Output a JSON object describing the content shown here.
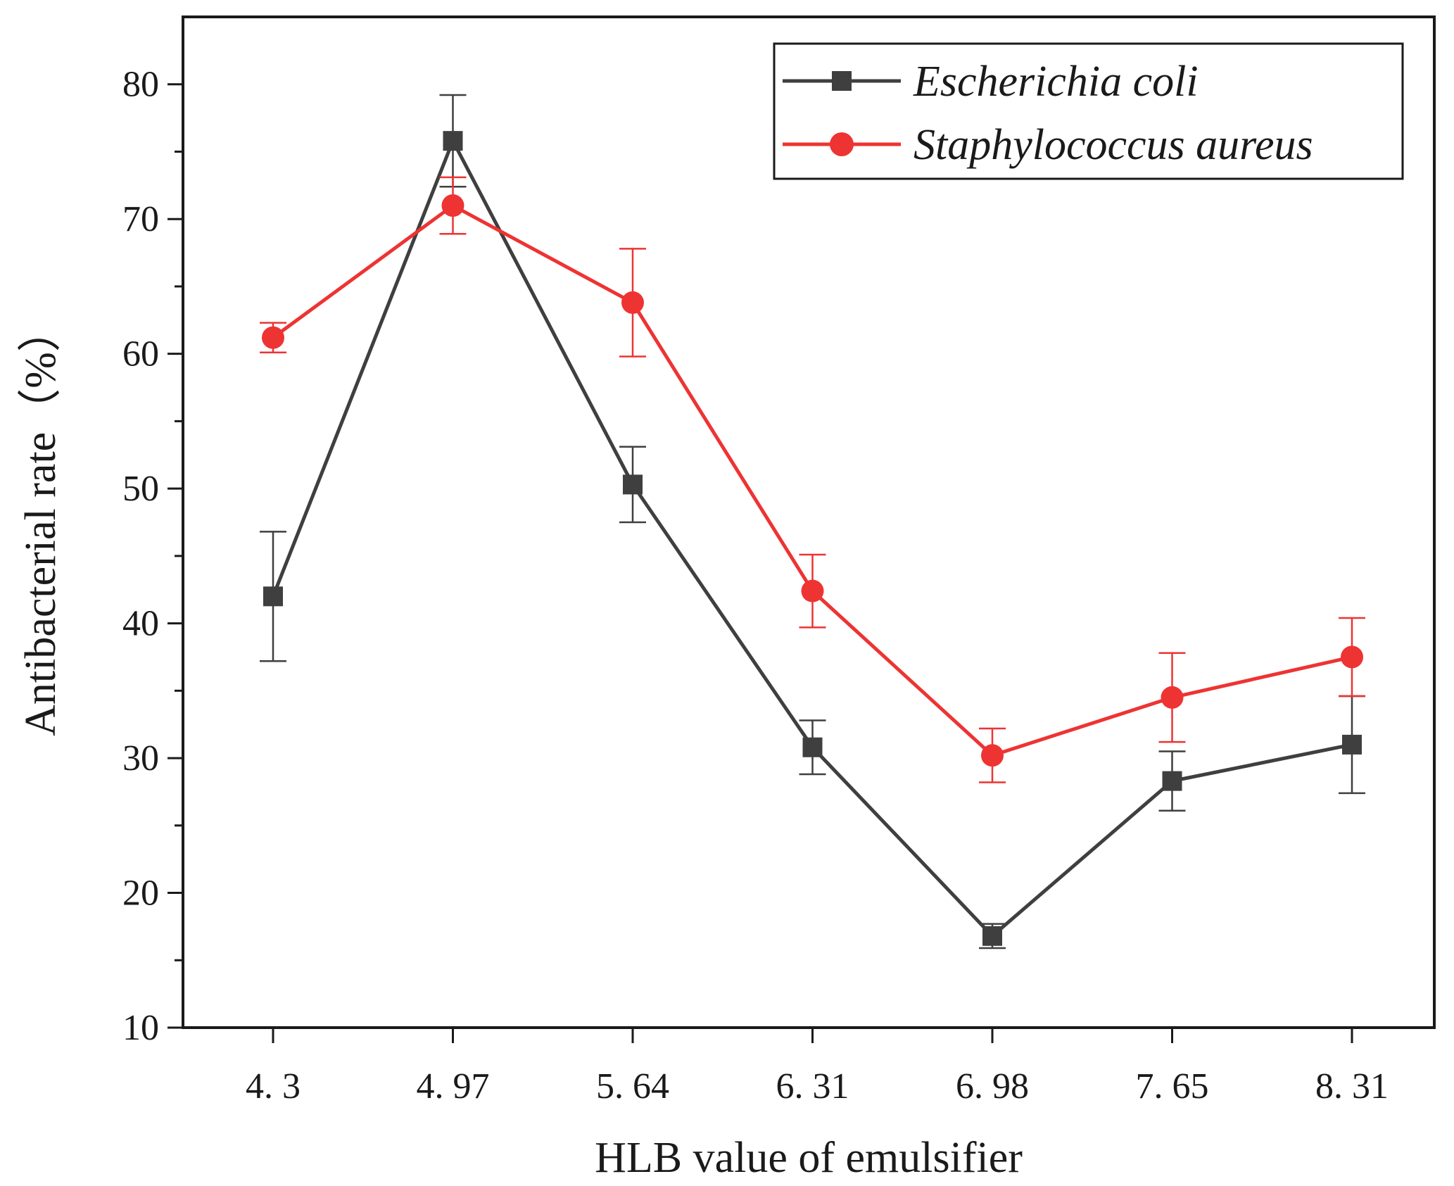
{
  "chart_data": {
    "type": "line",
    "title": "",
    "xlabel": "HLB value of emulsifier",
    "ylabel": "Antibacterial rate（%）",
    "categories": [
      "4. 3",
      "4. 97",
      "5. 64",
      "6. 31",
      "6. 98",
      "7. 65",
      "8. 31"
    ],
    "y_ticks": [
      "10",
      "20",
      "30",
      "40",
      "50",
      "60",
      "70",
      "80"
    ],
    "ylim": [
      10,
      85
    ],
    "legend_position": "top-right",
    "series": [
      {
        "name": "Escherichia coli",
        "color": "#3f3f3f",
        "marker": "square",
        "values": [
          42.0,
          75.8,
          50.3,
          30.8,
          16.8,
          28.3,
          31.0
        ],
        "errors": [
          4.8,
          3.4,
          2.8,
          2.0,
          0.9,
          2.2,
          3.6
        ]
      },
      {
        "name": "Staphylococcus aureus",
        "color": "#ee3333",
        "marker": "circle",
        "values": [
          61.2,
          71.0,
          63.8,
          42.4,
          30.2,
          34.5,
          37.5
        ],
        "errors": [
          1.1,
          2.1,
          4.0,
          2.7,
          2.0,
          3.3,
          2.9
        ]
      }
    ]
  }
}
